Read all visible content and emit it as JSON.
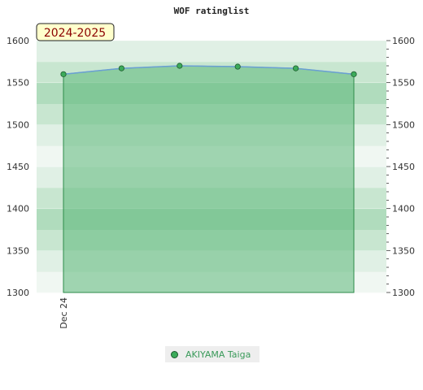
{
  "chart_data": {
    "type": "area",
    "title": "WOF ratinglist",
    "season_label": "2024-2025",
    "ylim": [
      1300,
      1600
    ],
    "y_ticks": [
      1300,
      1350,
      1400,
      1450,
      1500,
      1550,
      1600
    ],
    "x_tick_labels": [
      "Dec 24"
    ],
    "series": [
      {
        "name": "AKIYAMA Taiga",
        "values": [
          1560,
          1567,
          1570,
          1569,
          1567,
          1560
        ]
      }
    ],
    "legend_position": "bottom",
    "colors": {
      "line": "#6a9fd4",
      "area": "#5cb87a",
      "marker": "#3cab5a"
    }
  }
}
